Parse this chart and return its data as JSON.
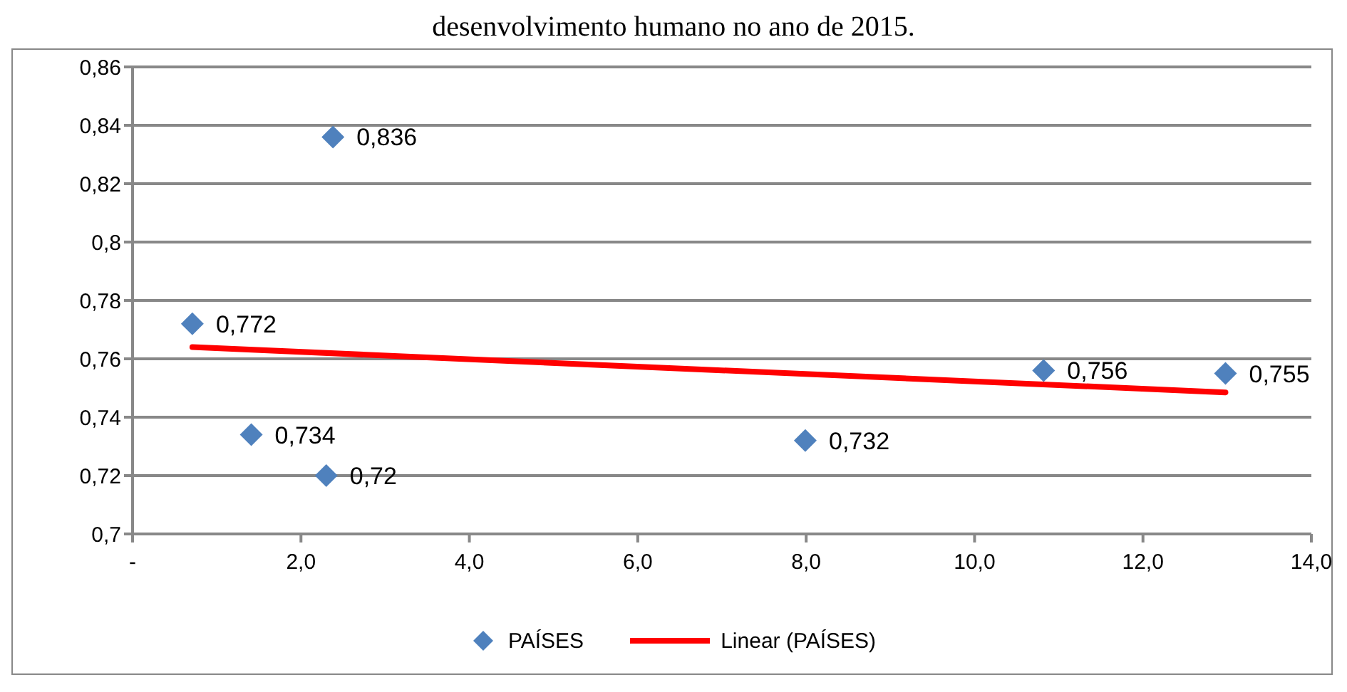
{
  "chart_data": {
    "type": "scatter",
    "title": "desenvolvimento humano no ano de 2015.",
    "series": [
      {
        "name": "PAÍSES",
        "color": "#4f81bd",
        "marker": "diamond",
        "x": [
          0.71,
          1.41,
          2.3,
          2.38,
          7.99,
          10.82,
          12.98
        ],
        "values": [
          0.772,
          0.734,
          0.72,
          0.836,
          0.732,
          0.756,
          0.755
        ],
        "value_labels": [
          "0,772",
          "0,734",
          "0,72",
          "0,836",
          "0,732",
          "0,756",
          "0,755"
        ]
      },
      {
        "name": "Linear (PAÍSES)",
        "type": "line",
        "color": "#ff0000",
        "marker": "none",
        "line_style": "solid",
        "x": [
          0.71,
          12.98
        ],
        "values": [
          0.764,
          0.7485
        ]
      }
    ],
    "xlim": [
      0,
      14
    ],
    "xticks": [
      {
        "value": 0,
        "label": "-"
      },
      {
        "value": 2,
        "label": "2,0"
      },
      {
        "value": 4,
        "label": "4,0"
      },
      {
        "value": 6,
        "label": "6,0"
      },
      {
        "value": 8,
        "label": "8,0"
      },
      {
        "value": 10,
        "label": "10,0"
      },
      {
        "value": 12,
        "label": "12,0"
      },
      {
        "value": 14,
        "label": "14,0"
      }
    ],
    "ylim": [
      0.7,
      0.86
    ],
    "yticks": [
      {
        "value": 0.7,
        "label": "0,7"
      },
      {
        "value": 0.72,
        "label": "0,72"
      },
      {
        "value": 0.74,
        "label": "0,74"
      },
      {
        "value": 0.76,
        "label": "0,76"
      },
      {
        "value": 0.78,
        "label": "0,78"
      },
      {
        "value": 0.8,
        "label": "0,8"
      },
      {
        "value": 0.82,
        "label": "0,82"
      },
      {
        "value": 0.84,
        "label": "0,84"
      },
      {
        "value": 0.86,
        "label": "0,86"
      }
    ],
    "grid": "y",
    "legend": "bottom"
  }
}
